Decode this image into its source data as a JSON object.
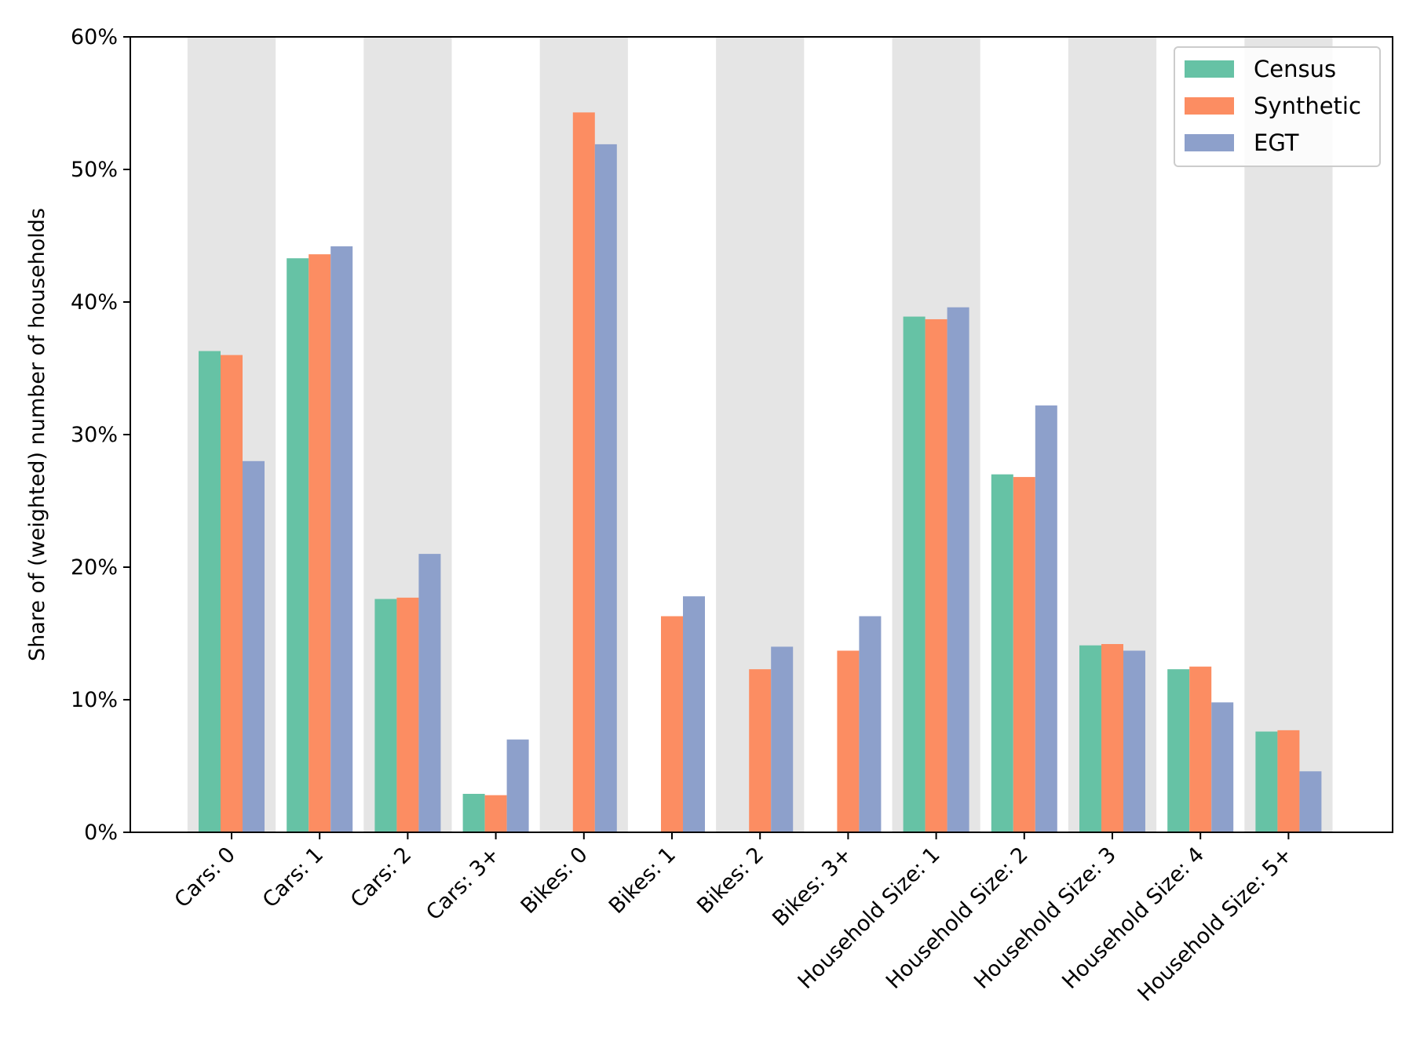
{
  "chart_data": {
    "type": "bar",
    "categories": [
      "Cars: 0",
      "Cars: 1",
      "Cars: 2",
      "Cars: 3+",
      "Bikes: 0",
      "Bikes: 1",
      "Bikes: 2",
      "Bikes: 3+",
      "Household Size: 1",
      "Household Size: 2",
      "Household Size: 3",
      "Household Size: 4",
      "Household Size: 5+"
    ],
    "series": [
      {
        "name": "Census",
        "color": "#66c2a5",
        "values": [
          36.3,
          43.3,
          17.6,
          2.9,
          null,
          null,
          null,
          null,
          38.9,
          27.0,
          14.1,
          12.3,
          7.6
        ]
      },
      {
        "name": "Synthetic",
        "color": "#fc8d62",
        "values": [
          36.0,
          43.6,
          17.7,
          2.8,
          54.3,
          16.3,
          12.3,
          13.7,
          38.7,
          26.8,
          14.2,
          12.5,
          7.7
        ]
      },
      {
        "name": "EGT",
        "color": "#8da0cb",
        "values": [
          28.0,
          44.2,
          21.0,
          7.0,
          51.9,
          17.8,
          14.0,
          16.3,
          39.6,
          32.2,
          13.7,
          9.8,
          4.6
        ]
      }
    ],
    "title": "",
    "xlabel": "",
    "ylabel": "Share of (weighted) number of households",
    "ylim": [
      0,
      60
    ],
    "yticks": [
      0,
      10,
      20,
      30,
      40,
      50,
      60
    ],
    "ytick_labels": [
      "0%",
      "10%",
      "20%",
      "30%",
      "40%",
      "50%",
      "60%"
    ],
    "band_color": "#e5e5e5",
    "legend_position": "top-right",
    "grid": false
  }
}
